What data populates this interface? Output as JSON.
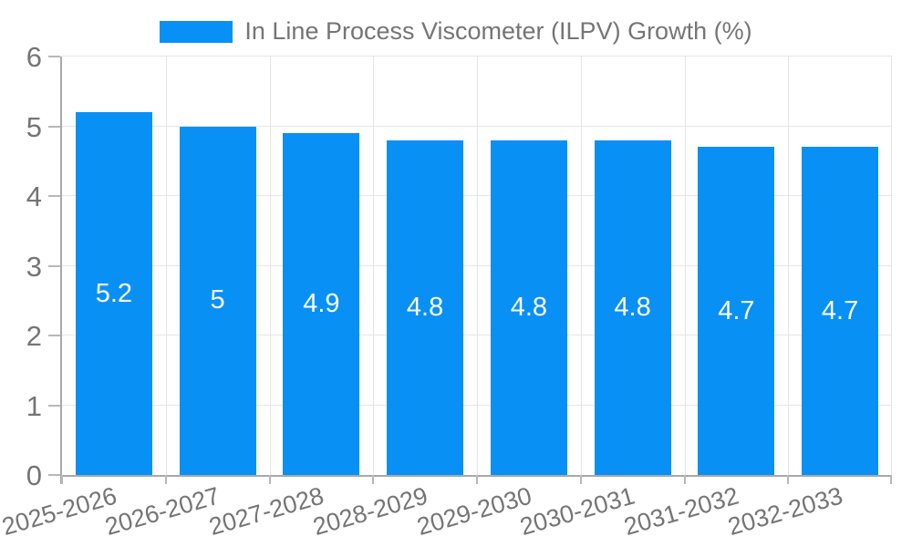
{
  "chart_data": {
    "type": "bar",
    "title": "",
    "xlabel": "",
    "ylabel": "",
    "categories": [
      "2025-2026",
      "2026-2027",
      "2027-2028",
      "2028-2029",
      "2029-2030",
      "2030-2031",
      "2031-2032",
      "2032-2033"
    ],
    "series": [
      {
        "name": "In Line Process Viscometer (ILPV) Growth (%)",
        "values": [
          5.2,
          5,
          4.9,
          4.8,
          4.8,
          4.8,
          4.7,
          4.7
        ]
      }
    ],
    "value_labels": [
      "5.2",
      "5",
      "4.9",
      "4.8",
      "4.8",
      "4.8",
      "4.7",
      "4.7"
    ],
    "ylim": [
      0,
      6
    ],
    "yticks": [
      0,
      1,
      2,
      3,
      4,
      5,
      6
    ],
    "grid": true,
    "legend_position": "top-center",
    "colors": {
      "bar": "#0990F5",
      "value_label": "#FFFFFF",
      "grid": "#E6E6E6",
      "axis": "#A8A8A8",
      "tick": "#B8B8B8",
      "text": "#757575"
    }
  }
}
